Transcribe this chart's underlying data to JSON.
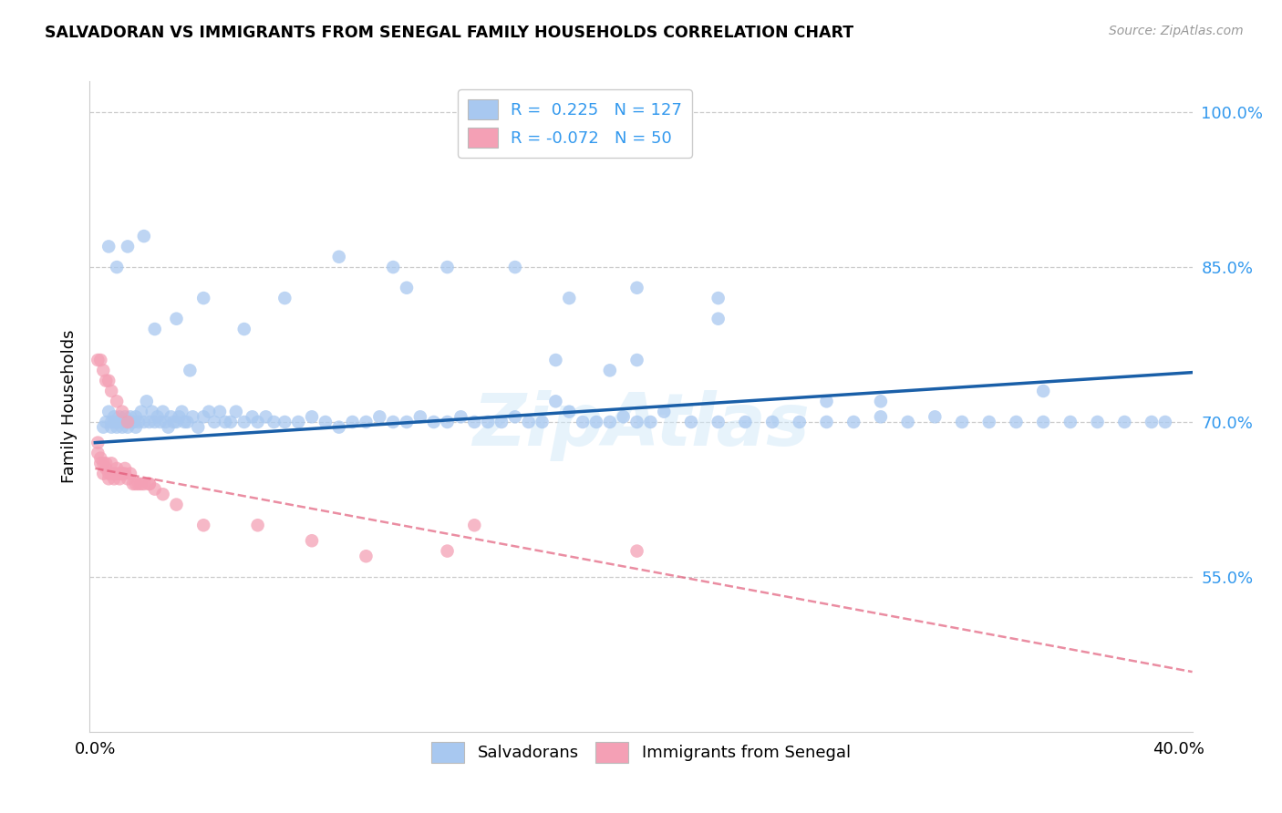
{
  "title": "SALVADORAN VS IMMIGRANTS FROM SENEGAL FAMILY HOUSEHOLDS CORRELATION CHART",
  "source": "Source: ZipAtlas.com",
  "ylabel": "Family Households",
  "watermark": "ZipAtlas",
  "legend_blue_r": "0.225",
  "legend_blue_n": "127",
  "legend_pink_r": "-0.072",
  "legend_pink_n": "50",
  "legend_blue_label": "Salvadorans",
  "legend_pink_label": "Immigrants from Senegal",
  "xlim": [
    -0.002,
    0.405
  ],
  "ylim": [
    0.4,
    1.03
  ],
  "yticks": [
    0.55,
    0.7,
    0.85,
    1.0
  ],
  "ytick_labels": [
    "55.0%",
    "70.0%",
    "85.0%",
    "100.0%"
  ],
  "xticks": [
    0.0,
    0.05,
    0.1,
    0.15,
    0.2,
    0.25,
    0.3,
    0.35,
    0.4
  ],
  "blue_color": "#a8c8f0",
  "pink_color": "#f4a0b5",
  "trend_blue_color": "#1a5fa8",
  "trend_pink_color": "#e05070",
  "background_color": "#ffffff",
  "blue_scatter_x": [
    0.003,
    0.004,
    0.005,
    0.006,
    0.006,
    0.007,
    0.007,
    0.008,
    0.008,
    0.009,
    0.009,
    0.01,
    0.01,
    0.011,
    0.011,
    0.012,
    0.012,
    0.013,
    0.013,
    0.014,
    0.014,
    0.015,
    0.015,
    0.016,
    0.017,
    0.018,
    0.019,
    0.02,
    0.021,
    0.022,
    0.023,
    0.024,
    0.025,
    0.026,
    0.027,
    0.028,
    0.029,
    0.03,
    0.031,
    0.032,
    0.033,
    0.034,
    0.035,
    0.036,
    0.038,
    0.04,
    0.042,
    0.044,
    0.046,
    0.048,
    0.05,
    0.052,
    0.055,
    0.058,
    0.06,
    0.063,
    0.066,
    0.07,
    0.075,
    0.08,
    0.085,
    0.09,
    0.095,
    0.1,
    0.105,
    0.11,
    0.115,
    0.12,
    0.125,
    0.13,
    0.135,
    0.14,
    0.145,
    0.15,
    0.155,
    0.16,
    0.165,
    0.17,
    0.175,
    0.18,
    0.185,
    0.19,
    0.195,
    0.2,
    0.205,
    0.21,
    0.22,
    0.23,
    0.24,
    0.25,
    0.26,
    0.27,
    0.28,
    0.29,
    0.3,
    0.31,
    0.32,
    0.33,
    0.34,
    0.35,
    0.36,
    0.37,
    0.38,
    0.39,
    0.395,
    0.005,
    0.008,
    0.012,
    0.018,
    0.022,
    0.03,
    0.04,
    0.055,
    0.07,
    0.09,
    0.11,
    0.13,
    0.155,
    0.175,
    0.2,
    0.23,
    0.17,
    0.19,
    0.2,
    0.23,
    0.27,
    0.29,
    0.35,
    0.115
  ],
  "blue_scatter_y": [
    0.695,
    0.7,
    0.71,
    0.7,
    0.695,
    0.705,
    0.7,
    0.695,
    0.7,
    0.705,
    0.7,
    0.695,
    0.7,
    0.705,
    0.7,
    0.7,
    0.695,
    0.7,
    0.705,
    0.7,
    0.7,
    0.705,
    0.695,
    0.7,
    0.71,
    0.7,
    0.72,
    0.7,
    0.71,
    0.7,
    0.705,
    0.7,
    0.71,
    0.7,
    0.695,
    0.705,
    0.7,
    0.7,
    0.705,
    0.71,
    0.7,
    0.7,
    0.75,
    0.705,
    0.695,
    0.705,
    0.71,
    0.7,
    0.71,
    0.7,
    0.7,
    0.71,
    0.7,
    0.705,
    0.7,
    0.705,
    0.7,
    0.7,
    0.7,
    0.705,
    0.7,
    0.695,
    0.7,
    0.7,
    0.705,
    0.7,
    0.7,
    0.705,
    0.7,
    0.7,
    0.705,
    0.7,
    0.7,
    0.7,
    0.705,
    0.7,
    0.7,
    0.72,
    0.71,
    0.7,
    0.7,
    0.7,
    0.705,
    0.7,
    0.7,
    0.71,
    0.7,
    0.7,
    0.7,
    0.7,
    0.7,
    0.7,
    0.7,
    0.705,
    0.7,
    0.705,
    0.7,
    0.7,
    0.7,
    0.7,
    0.7,
    0.7,
    0.7,
    0.7,
    0.7,
    0.87,
    0.85,
    0.87,
    0.88,
    0.79,
    0.8,
    0.82,
    0.79,
    0.82,
    0.86,
    0.85,
    0.85,
    0.85,
    0.82,
    0.83,
    0.82,
    0.76,
    0.75,
    0.76,
    0.8,
    0.72,
    0.72,
    0.73,
    0.83
  ],
  "pink_scatter_x": [
    0.001,
    0.001,
    0.002,
    0.002,
    0.003,
    0.003,
    0.004,
    0.004,
    0.005,
    0.005,
    0.006,
    0.006,
    0.007,
    0.007,
    0.008,
    0.008,
    0.009,
    0.009,
    0.01,
    0.01,
    0.011,
    0.011,
    0.012,
    0.013,
    0.014,
    0.015,
    0.016,
    0.017,
    0.018,
    0.02,
    0.022,
    0.025,
    0.03,
    0.04,
    0.06,
    0.08,
    0.1,
    0.13,
    0.2,
    0.001,
    0.002,
    0.003,
    0.004,
    0.005,
    0.006,
    0.008,
    0.01,
    0.012,
    0.14,
    0.02
  ],
  "pink_scatter_y": [
    0.67,
    0.68,
    0.665,
    0.66,
    0.66,
    0.65,
    0.66,
    0.655,
    0.65,
    0.645,
    0.66,
    0.65,
    0.65,
    0.645,
    0.655,
    0.65,
    0.645,
    0.65,
    0.65,
    0.65,
    0.65,
    0.655,
    0.645,
    0.65,
    0.64,
    0.64,
    0.64,
    0.64,
    0.64,
    0.64,
    0.635,
    0.63,
    0.62,
    0.6,
    0.6,
    0.585,
    0.57,
    0.575,
    0.575,
    0.76,
    0.76,
    0.75,
    0.74,
    0.74,
    0.73,
    0.72,
    0.71,
    0.7,
    0.6,
    0.64
  ],
  "blue_trend_x": [
    0.0,
    0.405
  ],
  "blue_trend_y": [
    0.68,
    0.748
  ],
  "pink_trend_x": [
    0.0,
    0.405
  ],
  "pink_trend_y": [
    0.655,
    0.458
  ]
}
